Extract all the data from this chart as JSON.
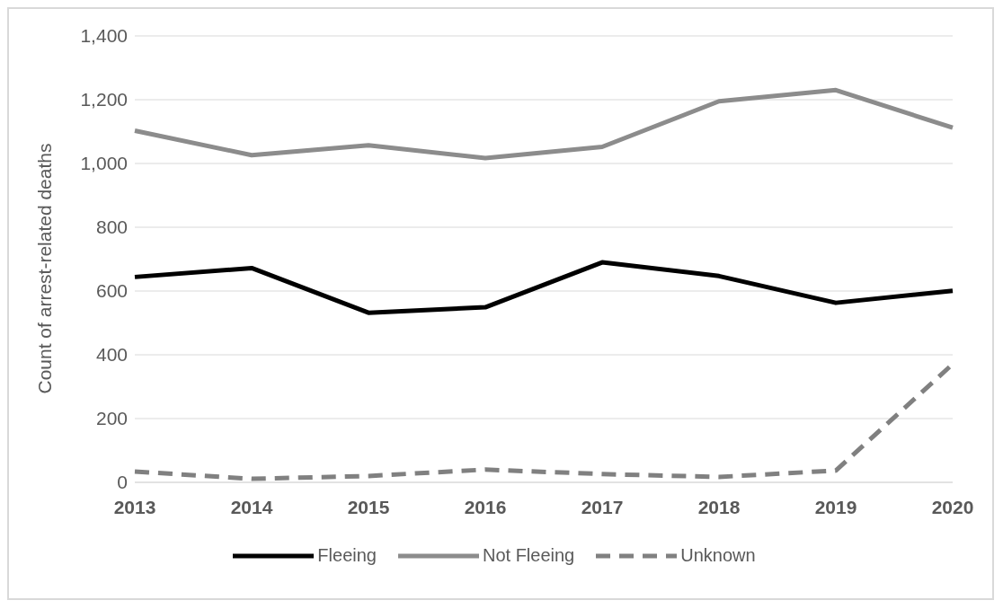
{
  "chart_data": {
    "type": "line",
    "ylabel": "Count of arrest-related deaths",
    "categories": [
      "2013",
      "2014",
      "2015",
      "2016",
      "2017",
      "2018",
      "2019",
      "2020"
    ],
    "series": [
      {
        "name": "Fleeing",
        "color": "#000000",
        "line_style": "solid",
        "values": [
          644,
          672,
          532,
          549,
          690,
          647,
          563,
          601
        ]
      },
      {
        "name": "Not Fleeing",
        "color": "#8c8c8c",
        "line_style": "solid",
        "values": [
          1103,
          1026,
          1057,
          1017,
          1052,
          1195,
          1230,
          1112
        ]
      },
      {
        "name": "Unknown",
        "color": "#808080",
        "line_style": "dashed",
        "values": [
          34,
          11,
          20,
          40,
          26,
          17,
          37,
          371
        ]
      }
    ],
    "ylim": [
      0,
      1400
    ],
    "yticks": [
      0,
      200,
      400,
      600,
      800,
      {
        "value": 1000,
        "label": "1,000"
      },
      {
        "value": 1200,
        "label": "1,200"
      },
      {
        "value": 1400,
        "label": "1,400"
      }
    ],
    "grid": "y",
    "legend": "bottom",
    "marker": "none"
  }
}
